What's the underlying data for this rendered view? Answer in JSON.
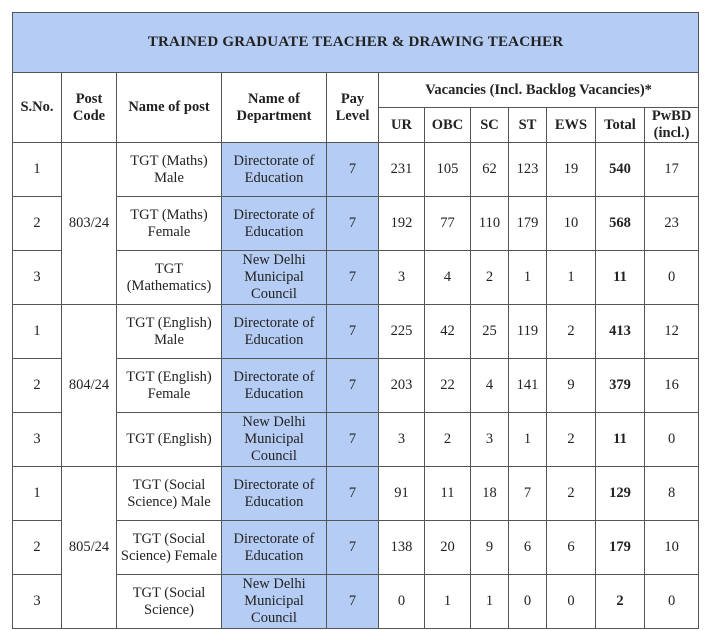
{
  "title": "TRAINED GRADUATE TEACHER & DRAWING TEACHER",
  "header": {
    "sno": "S.No.",
    "post_code": "Post Code",
    "name_of_post": "Name of post",
    "department": "Name of Department",
    "pay_level": "Pay Level",
    "vacancies": "Vacancies (Incl. Backlog Vacancies)*",
    "categories": [
      "UR",
      "OBC",
      "SC",
      "ST",
      "EWS",
      "Total",
      "PwBD (incl.)"
    ]
  },
  "colors": {
    "header_blue": "#b5cdf4",
    "border": "#555555"
  },
  "groups": [
    {
      "post_code": "803/24",
      "rows": [
        {
          "sno": "1",
          "post": "TGT (Maths) Male",
          "dept": "Directorate of Education",
          "pay": "7",
          "ur": "231",
          "obc": "105",
          "sc": "62",
          "st": "123",
          "ews": "19",
          "total": "540",
          "pwbd": "17"
        },
        {
          "sno": "2",
          "post": "TGT (Maths) Female",
          "dept": "Directorate of Education",
          "pay": "7",
          "ur": "192",
          "obc": "77",
          "sc": "110",
          "st": "179",
          "ews": "10",
          "total": "568",
          "pwbd": "23"
        },
        {
          "sno": "3",
          "post": "TGT (Mathematics)",
          "dept": "New Delhi Municipal Council",
          "pay": "7",
          "ur": "3",
          "obc": "4",
          "sc": "2",
          "st": "1",
          "ews": "1",
          "total": "11",
          "pwbd": "0"
        }
      ]
    },
    {
      "post_code": "804/24",
      "rows": [
        {
          "sno": "1",
          "post": "TGT (English) Male",
          "dept": "Directorate of Education",
          "pay": "7",
          "ur": "225",
          "obc": "42",
          "sc": "25",
          "st": "119",
          "ews": "2",
          "total": "413",
          "pwbd": "12"
        },
        {
          "sno": "2",
          "post": "TGT (English) Female",
          "dept": "Directorate of Education",
          "pay": "7",
          "ur": "203",
          "obc": "22",
          "sc": "4",
          "st": "141",
          "ews": "9",
          "total": "379",
          "pwbd": "16"
        },
        {
          "sno": "3",
          "post": "TGT (English)",
          "dept": "New Delhi Municipal Council",
          "pay": "7",
          "ur": "3",
          "obc": "2",
          "sc": "3",
          "st": "1",
          "ews": "2",
          "total": "11",
          "pwbd": "0"
        }
      ]
    },
    {
      "post_code": "805/24",
      "rows": [
        {
          "sno": "1",
          "post": "TGT (Social Science) Male",
          "dept": "Directorate of Education",
          "pay": "7",
          "ur": "91",
          "obc": "11",
          "sc": "18",
          "st": "7",
          "ews": "2",
          "total": "129",
          "pwbd": "8"
        },
        {
          "sno": "2",
          "post": "TGT (Social Science) Female",
          "dept": "Directorate of Education",
          "pay": "7",
          "ur": "138",
          "obc": "20",
          "sc": "9",
          "st": "6",
          "ews": "6",
          "total": "179",
          "pwbd": "10"
        },
        {
          "sno": "3",
          "post": "TGT (Social Science)",
          "dept": "New Delhi Municipal Council",
          "pay": "7",
          "ur": "0",
          "obc": "1",
          "sc": "1",
          "st": "0",
          "ews": "0",
          "total": "2",
          "pwbd": "0"
        }
      ]
    }
  ]
}
